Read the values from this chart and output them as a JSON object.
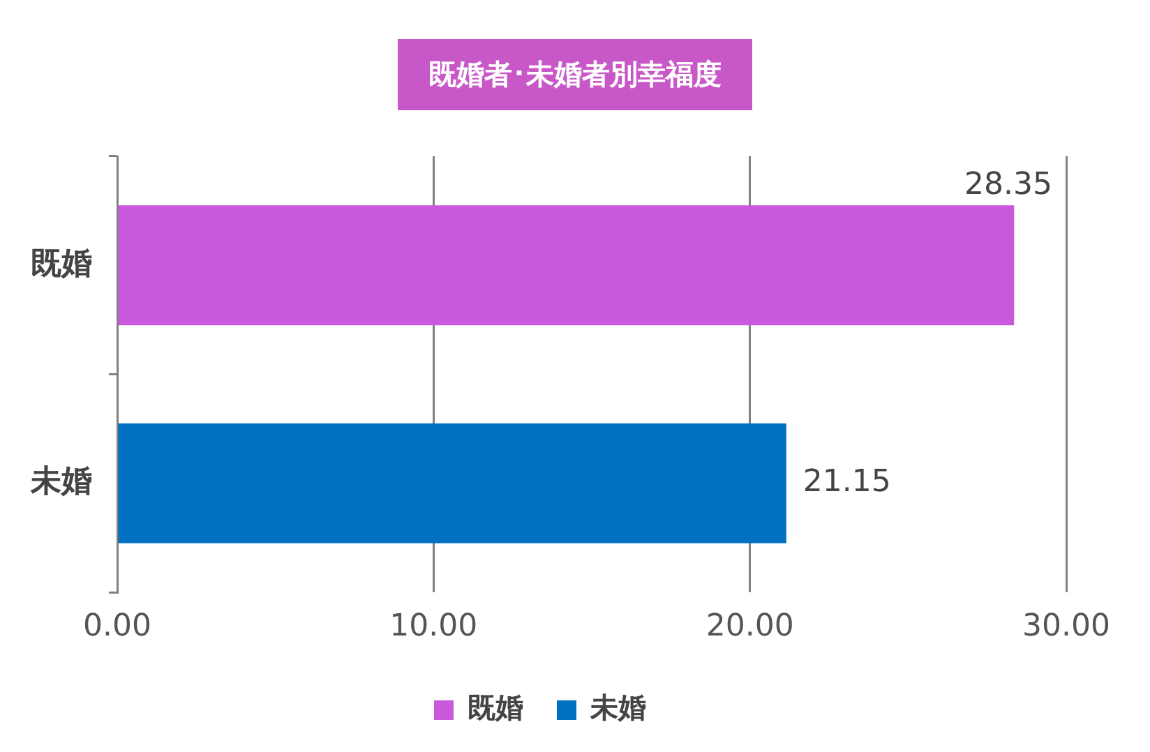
{
  "chart_data": {
    "type": "bar",
    "orientation": "horizontal",
    "stacked": true,
    "title": "既婚者･未婚者別幸福度",
    "categories": [
      "既婚",
      "未婚"
    ],
    "series": [
      {
        "name": "既婚",
        "color": "#c858dc",
        "values": [
          28.35,
          null
        ],
        "value_labels": [
          "28.35",
          null
        ]
      },
      {
        "name": "未婚",
        "color": "#0070c0",
        "values": [
          null,
          21.15
        ],
        "value_labels": [
          null,
          "21.15"
        ]
      }
    ],
    "xlim": [
      0,
      30
    ],
    "xticks": [
      {
        "value": 0,
        "label": "0.00"
      },
      {
        "value": 10,
        "label": "10.00"
      },
      {
        "value": 20,
        "label": "20.00"
      },
      {
        "value": 30,
        "label": "30.00"
      }
    ],
    "grid": "x",
    "legend": "bottom"
  }
}
